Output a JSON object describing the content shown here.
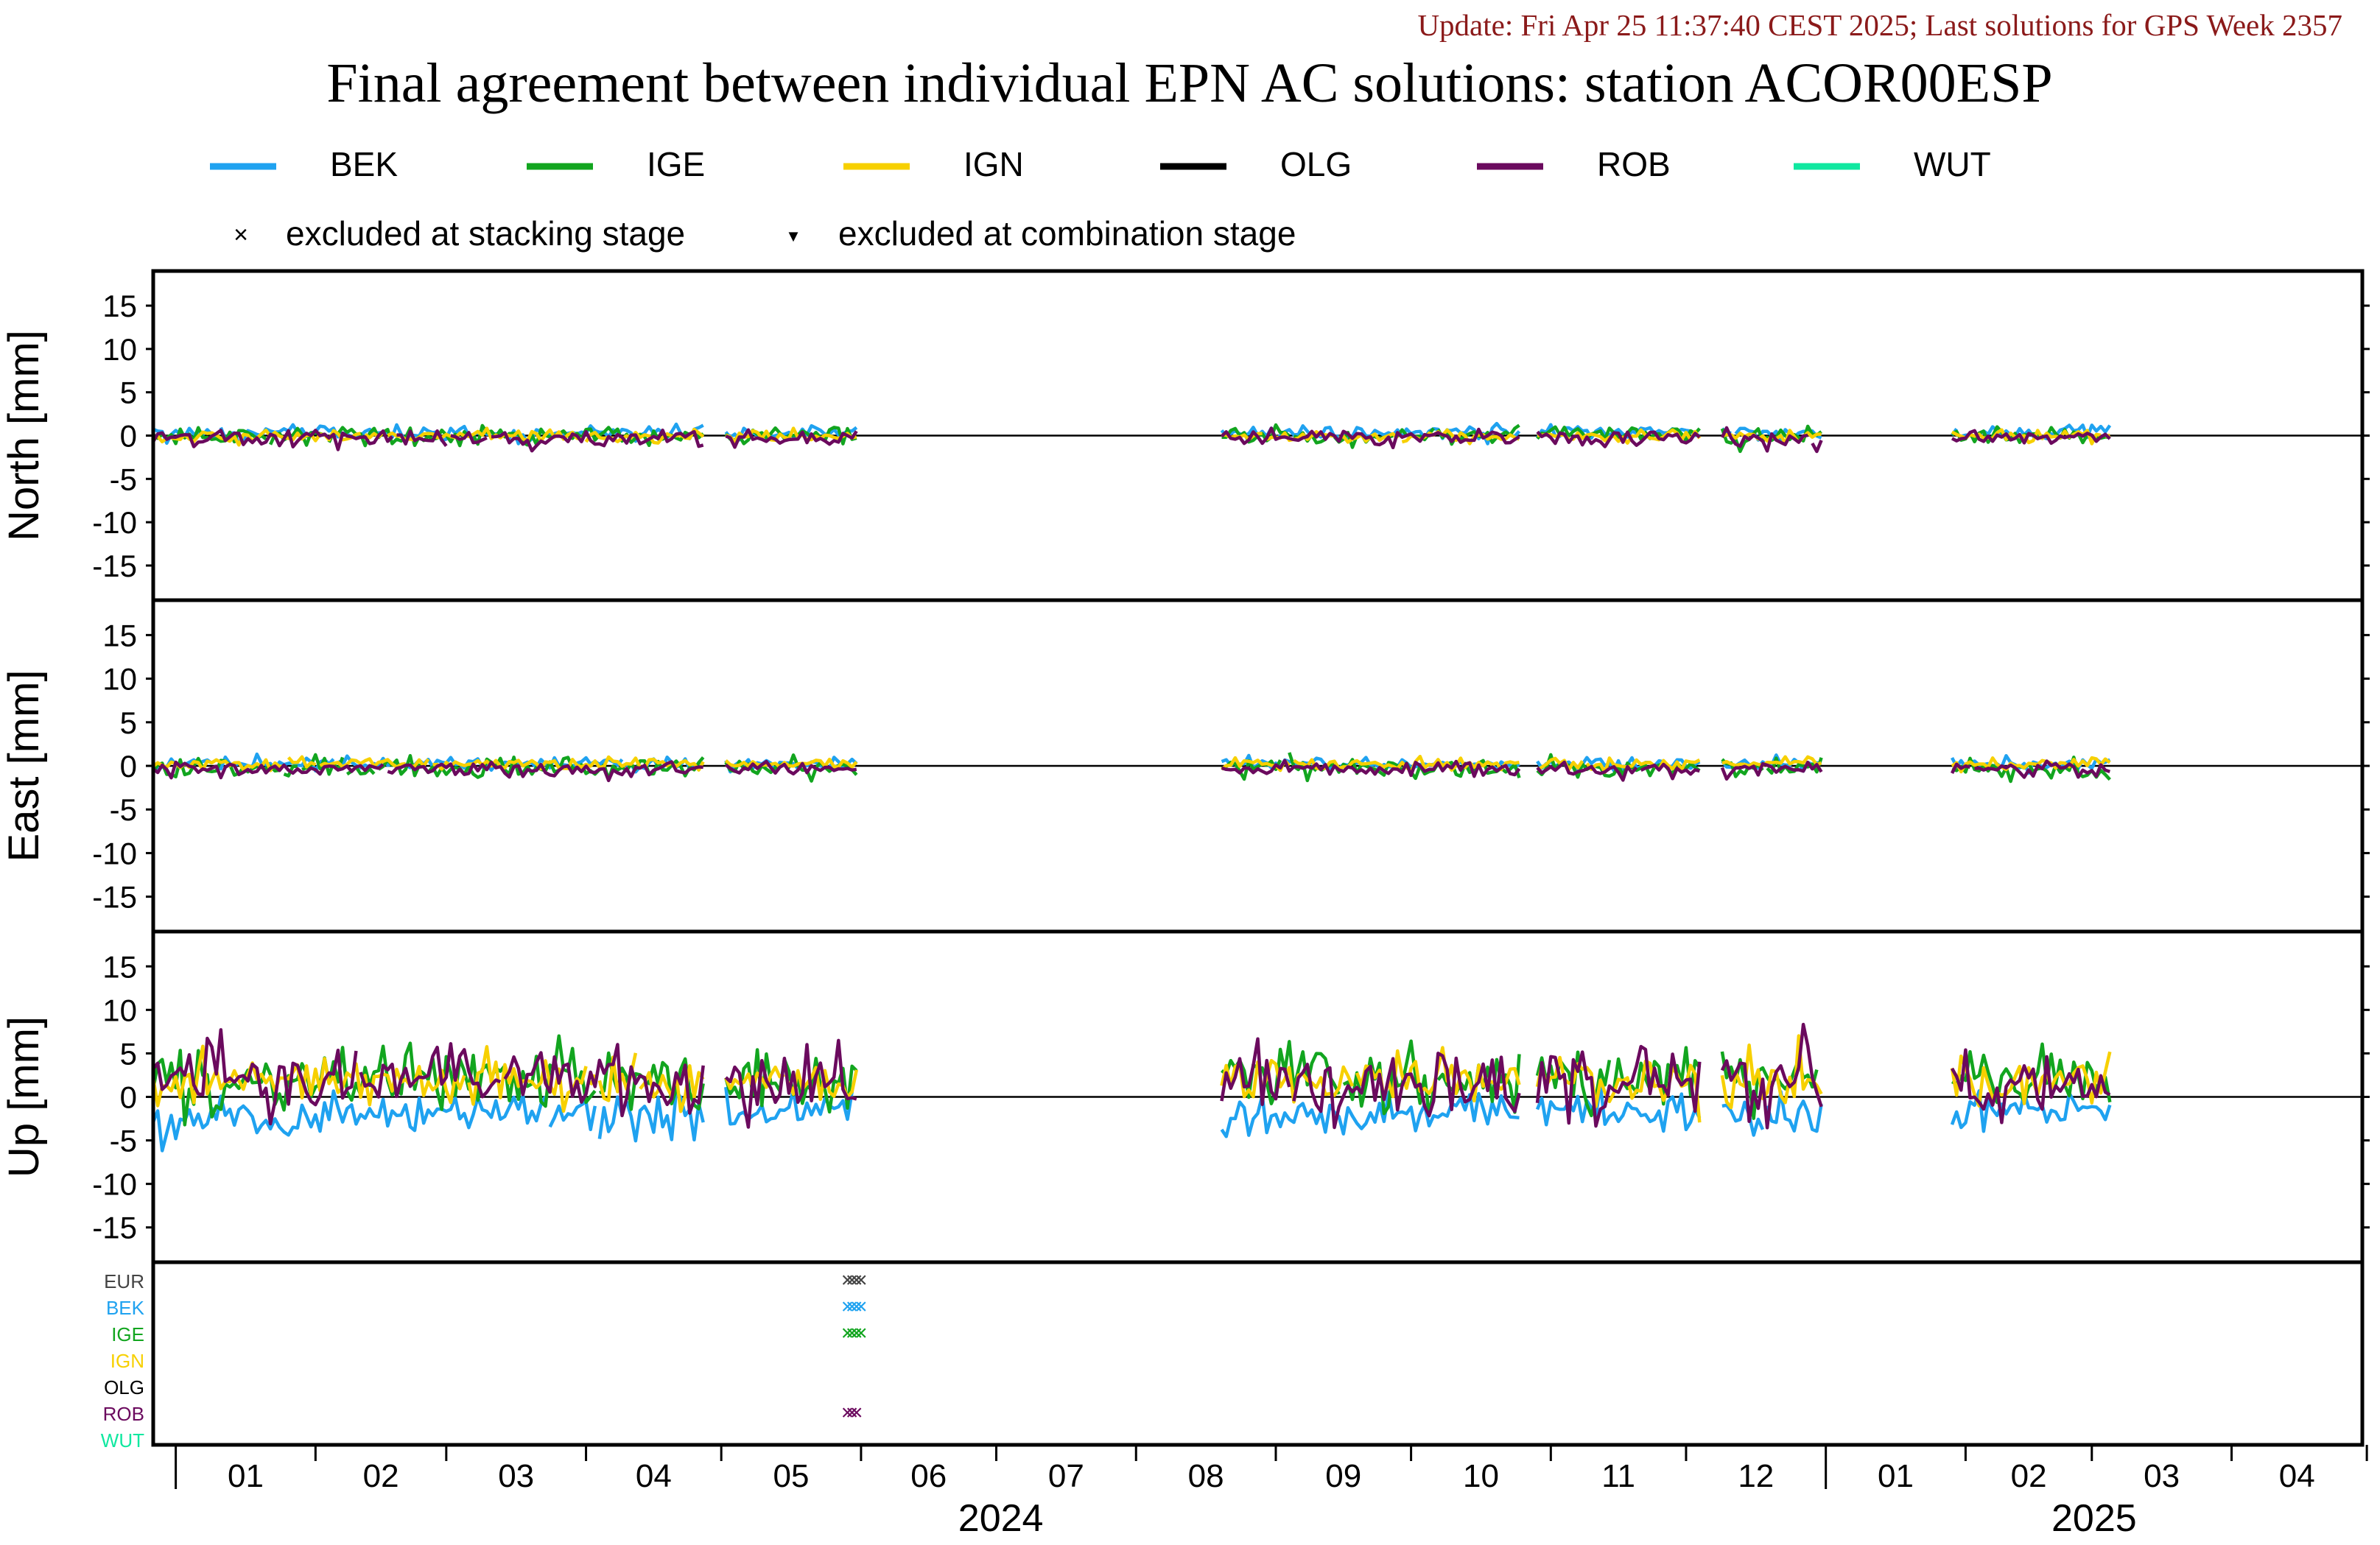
{
  "update_text": "Update: Fri Apr 25 11:37:40 CEST 2025; Last solutions for GPS Week 2357",
  "colors": {
    "update": "#8b1a1a",
    "BEK": "#1fa2f0",
    "IGE": "#12a51f",
    "IGN": "#f7d000",
    "OLG": "#000000",
    "ROB": "#6b0a5e",
    "WUT": "#10e8a0",
    "EUR": "#444444"
  },
  "legend": {
    "series": [
      "BEK",
      "IGE",
      "IGN",
      "OLG",
      "ROB",
      "WUT"
    ],
    "stacking_label": "excluded at stacking stage",
    "combination_label": "excluded at combination stage",
    "stacking_marker": "×",
    "combination_marker": "▼"
  },
  "chart_data": {
    "type": "line",
    "title": "Final agreement between individual EPN AC solutions: station ACOR00ESP",
    "x_axis": {
      "unit": "month",
      "ticks": [
        "01",
        "02",
        "03",
        "04",
        "05",
        "06",
        "07",
        "08",
        "09",
        "10",
        "11",
        "12",
        "01",
        "02",
        "03",
        "04"
      ],
      "years": [
        {
          "label": "2024",
          "start": "2024-01-01"
        },
        {
          "label": "2025",
          "start": "2025-01-01"
        }
      ],
      "xlim": [
        "2023-12-27",
        "2025-04-30"
      ]
    },
    "data_periods": [
      [
        "2023-12-27",
        "2024-05-31"
      ],
      [
        "2024-08-20",
        "2024-12-31"
      ],
      [
        "2025-01-29",
        "2025-03-05"
      ]
    ],
    "gaps": [
      [
        "2024-04-28",
        "2024-05-01"
      ],
      [
        "2024-12-05",
        "2024-12-08"
      ],
      [
        "2024-10-26",
        "2024-10-28"
      ]
    ],
    "panels": [
      {
        "ylabel": "North [mm]",
        "ylim": [
          -19,
          19
        ],
        "yticks": [
          15,
          10,
          5,
          0,
          -5,
          -10,
          -15
        ],
        "series": [
          {
            "name": "BEK",
            "offset": 0.3,
            "noise": 0.45
          },
          {
            "name": "IGE",
            "offset": 0.0,
            "noise": 0.5
          },
          {
            "name": "IGN",
            "offset": -0.1,
            "noise": 0.35
          },
          {
            "name": "ROB",
            "offset": -0.3,
            "noise": 0.5
          }
        ]
      },
      {
        "ylabel": "East [mm]",
        "ylim": [
          -19,
          19
        ],
        "yticks": [
          15,
          10,
          5,
          0,
          -5,
          -10,
          -15
        ],
        "series": [
          {
            "name": "BEK",
            "offset": 0.2,
            "noise": 0.35
          },
          {
            "name": "IGE",
            "offset": -0.3,
            "noise": 0.6
          },
          {
            "name": "IGN",
            "offset": 0.2,
            "noise": 0.35
          },
          {
            "name": "ROB",
            "offset": -0.4,
            "noise": 0.45
          }
        ]
      },
      {
        "ylabel": "Up [mm]",
        "ylim": [
          -19,
          19
        ],
        "yticks": [
          15,
          10,
          5,
          0,
          -5,
          -10,
          -15
        ],
        "series": [
          {
            "name": "BEK",
            "offset": -2.0,
            "noise": 1.2
          },
          {
            "name": "IGE",
            "offset": 2.0,
            "noise": 1.8
          },
          {
            "name": "IGN",
            "offset": 1.8,
            "noise": 1.5
          },
          {
            "name": "ROB",
            "offset": 1.5,
            "noise": 2.2
          }
        ]
      }
    ],
    "exclusion_rows": [
      "EUR",
      "BEK",
      "IGE",
      "IGN",
      "OLG",
      "ROB",
      "WUT"
    ],
    "exclusions": [
      {
        "row": "EUR",
        "dates": [
          "2024-05-29",
          "2024-05-30",
          "2024-05-31",
          "2024-06-01"
        ],
        "marker": "stacking"
      },
      {
        "row": "BEK",
        "dates": [
          "2024-05-29",
          "2024-05-30",
          "2024-05-31",
          "2024-06-01"
        ],
        "marker": "stacking"
      },
      {
        "row": "IGE",
        "dates": [
          "2024-05-29",
          "2024-05-30",
          "2024-05-31",
          "2024-06-01"
        ],
        "marker": "stacking"
      },
      {
        "row": "ROB",
        "dates": [
          "2024-05-29",
          "2024-05-30",
          "2024-05-31"
        ],
        "marker": "stacking"
      }
    ]
  }
}
